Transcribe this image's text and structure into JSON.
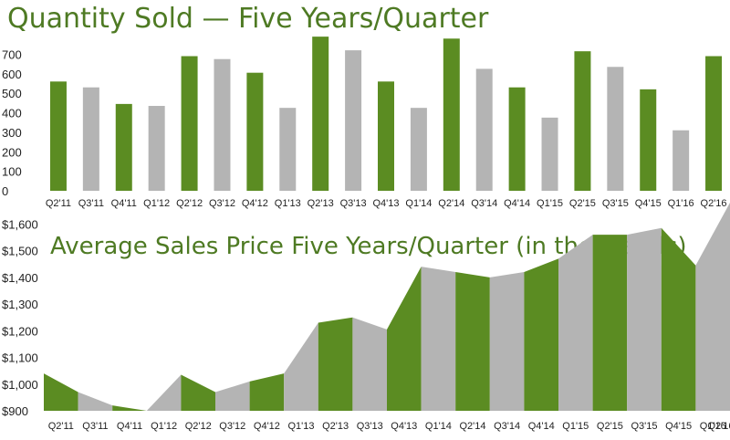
{
  "colors": {
    "green": "#5b8c22",
    "gray": "#b4b4b4",
    "title": "#4e7a23",
    "text": "#222222"
  },
  "chart_data": [
    {
      "type": "bar",
      "title": "Quantity Sold — Five Years/Quarter",
      "xlabel": "",
      "ylabel": "",
      "ylim": [
        0,
        800
      ],
      "yticks": [
        0,
        100,
        200,
        300,
        400,
        500,
        600,
        700
      ],
      "grid": false,
      "categories": [
        "Q2'11",
        "Q3'11",
        "Q4'11",
        "Q1'12",
        "Q2'12",
        "Q3'12",
        "Q4'12",
        "Q1'13",
        "Q2'13",
        "Q3'13",
        "Q4'13",
        "Q1'14",
        "Q2'14",
        "Q3'14",
        "Q4'14",
        "Q1'15",
        "Q2'15",
        "Q3'15",
        "Q4'15",
        "Q1'16",
        "Q2'16"
      ],
      "values": [
        560,
        530,
        445,
        435,
        690,
        675,
        605,
        425,
        790,
        720,
        560,
        425,
        780,
        625,
        530,
        375,
        715,
        635,
        520,
        310,
        690
      ],
      "bar_colors": [
        "green",
        "gray",
        "green",
        "gray",
        "green",
        "gray",
        "green",
        "gray",
        "green",
        "gray",
        "green",
        "gray",
        "green",
        "gray",
        "green",
        "gray",
        "green",
        "gray",
        "green",
        "gray",
        "green"
      ]
    },
    {
      "type": "area",
      "title": "Average Sales Price Five Years/Quarter (in thousands)",
      "xlabel": "",
      "ylabel": "",
      "ylim": [
        900,
        1680
      ],
      "yticks": [
        900,
        1000,
        1100,
        1200,
        1300,
        1400,
        1500,
        1600
      ],
      "ytick_labels": [
        "$900",
        "$1,000",
        "$1,100",
        "$1,200",
        "$1,300",
        "$1,400",
        "$1,500",
        "$1,600"
      ],
      "grid": false,
      "categories": [
        "Q2'11",
        "Q3'11",
        "Q4'11",
        "Q1'12",
        "Q2'12",
        "Q3'12",
        "Q4'12",
        "Q1'13",
        "Q2'13",
        "Q3'13",
        "Q4'13",
        "Q1'14",
        "Q2'14",
        "Q3'14",
        "Q4'14",
        "Q1'15",
        "Q2'15",
        "Q3'15",
        "Q4'15",
        "Q1'16",
        "Q2'16"
      ],
      "values": [
        1040,
        970,
        920,
        900,
        1035,
        970,
        1010,
        1040,
        1230,
        1250,
        1205,
        1440,
        1420,
        1400,
        1420,
        1470,
        1560,
        1560,
        1585,
        1445,
        1680
      ],
      "segment_colors": [
        "green",
        "gray",
        "green",
        "gray",
        "green",
        "gray",
        "green",
        "gray",
        "green",
        "gray",
        "green",
        "gray",
        "green",
        "gray",
        "green",
        "gray",
        "green",
        "gray",
        "green",
        "gray"
      ]
    }
  ]
}
